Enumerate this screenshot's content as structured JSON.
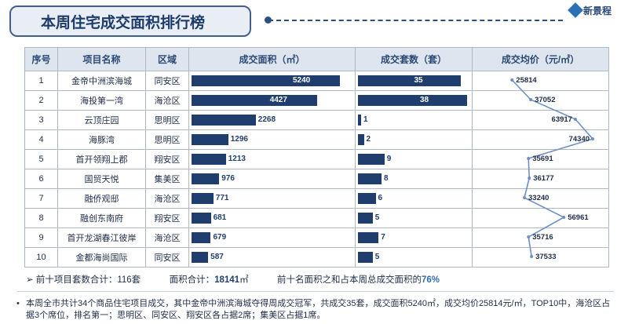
{
  "header": {
    "title": "本周住宅成交面积排行榜",
    "logo_text": "新景程"
  },
  "table": {
    "columns": [
      "序号",
      "项目名称",
      "区域",
      "成交面积（㎡）",
      "成交套数（套）",
      "成交均价（元/㎡）"
    ],
    "rows": [
      {
        "rank": "1",
        "name": "金帝中洲滨海城",
        "district": "同安区"
      },
      {
        "rank": "2",
        "name": "海投第一湾",
        "district": "海沧区"
      },
      {
        "rank": "3",
        "name": "云顶庄园",
        "district": "思明区"
      },
      {
        "rank": "4",
        "name": "海豚湾",
        "district": "思明区"
      },
      {
        "rank": "5",
        "name": "首开领翔上郡",
        "district": "翔安区"
      },
      {
        "rank": "6",
        "name": "国贸天悦",
        "district": "集美区"
      },
      {
        "rank": "7",
        "name": "融侨观邸",
        "district": "海沧区"
      },
      {
        "rank": "8",
        "name": "融创东南府",
        "district": "翔安区"
      },
      {
        "rank": "9",
        "name": "首开龙湖春江彼岸",
        "district": "海沧区"
      },
      {
        "rank": "10",
        "name": "金都海尚国际",
        "district": "同安区"
      }
    ]
  },
  "chart_data": {
    "type": "table",
    "categories": [
      "金帝中洲滨海城",
      "海投第一湾",
      "云顶庄园",
      "海豚湾",
      "首开领翔上郡",
      "国贸天悦",
      "融侨观邸",
      "融创东南府",
      "首开龙湖春江彼岸",
      "金都海尚国际"
    ],
    "series": [
      {
        "name": "成交面积（㎡）",
        "type": "bar",
        "values": [
          5240,
          4427,
          2268,
          1296,
          1213,
          976,
          771,
          681,
          679,
          587
        ]
      },
      {
        "name": "成交套数（套）",
        "type": "bar",
        "values": [
          35,
          38,
          1,
          2,
          9,
          8,
          6,
          5,
          7,
          5
        ]
      },
      {
        "name": "成交均价（元/㎡）",
        "type": "line",
        "values": [
          25814,
          37052,
          63917,
          74340,
          35691,
          36177,
          33240,
          56961,
          35716,
          37533
        ]
      }
    ],
    "bar_color": "#1f3e6e",
    "line_color": "#6f8fc8"
  },
  "summary": {
    "arrow": "➢",
    "units_text": "前十项目套数合计：116套",
    "area_label": "面积合计：",
    "area_value": "18141",
    "area_unit": "㎡",
    "share_text": "前十名面积之和占本周总成交面积的",
    "share_value": "76%"
  },
  "note": {
    "bullet": "•",
    "text": "本周全市共计34个商品住宅项目成交，其中金帝中洲滨海城夺得周成交冠军，共成交35套，成交面积5240㎡，成交均价25814元/㎡，TOP10中，海沧区占据3个席位，排名第一；思明区、同安区、翔安区各占据2席；集美区占据1席。"
  }
}
